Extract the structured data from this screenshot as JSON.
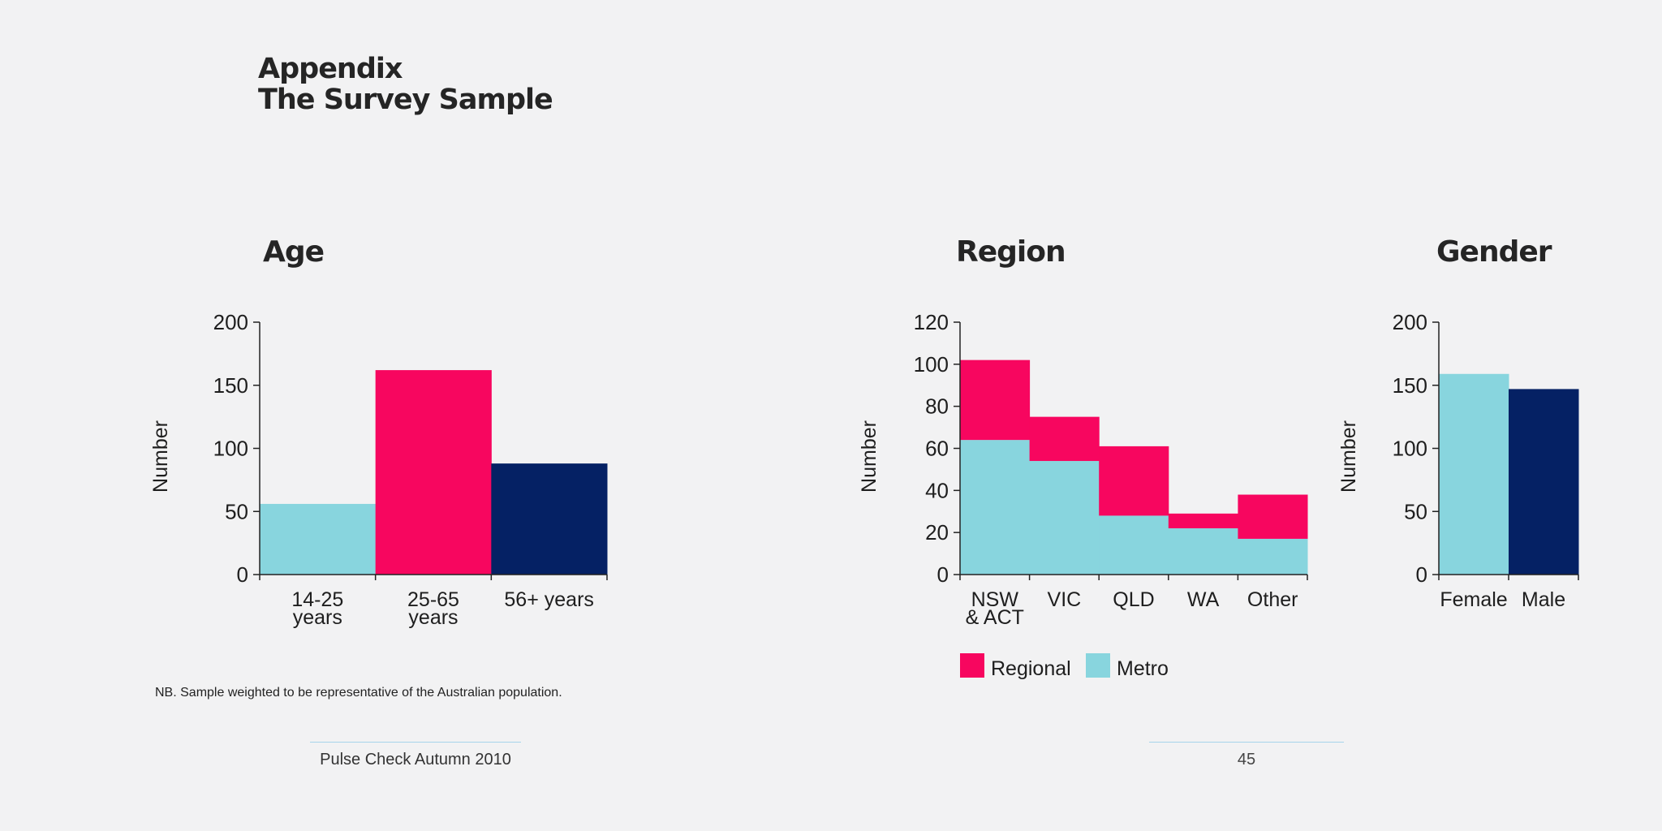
{
  "page": {
    "title_line1": "Appendix",
    "title_line2": "The Survey Sample",
    "note": "NB. Sample weighted to be representative of the Australian population.",
    "footer_left": "Pulse Check Autumn 2010",
    "page_number": "45"
  },
  "colors": {
    "metro": "#88d5de",
    "regional": "#f7065f",
    "navy": "#052164",
    "axis": "#222222"
  },
  "chart_data": [
    {
      "id": "age",
      "type": "bar",
      "title": "Age",
      "ylabel": "Number",
      "ylim": [
        0,
        200
      ],
      "yticks": [
        0,
        50,
        100,
        150,
        200
      ],
      "categories": [
        [
          "14-25",
          "years"
        ],
        [
          "25-65",
          "years"
        ],
        [
          "56+ years"
        ]
      ],
      "values": [
        56,
        162,
        88
      ],
      "bar_colors": [
        "#88d5de",
        "#f7065f",
        "#052164"
      ]
    },
    {
      "id": "region",
      "type": "bar",
      "stacked": true,
      "title": "Region",
      "ylabel": "Number",
      "ylim": [
        0,
        120
      ],
      "yticks": [
        0,
        20,
        40,
        60,
        80,
        100,
        120
      ],
      "categories": [
        [
          "NSW",
          "& ACT"
        ],
        [
          "VIC"
        ],
        [
          "QLD"
        ],
        [
          "WA"
        ],
        [
          "Other"
        ]
      ],
      "series": [
        {
          "name": "Metro",
          "values": [
            64,
            54,
            28,
            22,
            17
          ],
          "color": "#88d5de"
        },
        {
          "name": "Regional",
          "values": [
            38,
            21,
            33,
            7,
            21
          ],
          "color": "#f7065f"
        }
      ],
      "legend": [
        {
          "label": "Regional",
          "color": "#f7065f"
        },
        {
          "label": "Metro",
          "color": "#88d5de"
        }
      ]
    },
    {
      "id": "gender",
      "type": "bar",
      "title": "Gender",
      "ylabel": "Number",
      "ylim": [
        0,
        200
      ],
      "yticks": [
        0,
        50,
        100,
        150,
        200
      ],
      "categories": [
        [
          "Female"
        ],
        [
          "Male"
        ]
      ],
      "values": [
        159,
        147
      ],
      "bar_colors": [
        "#88d5de",
        "#052164"
      ]
    }
  ]
}
